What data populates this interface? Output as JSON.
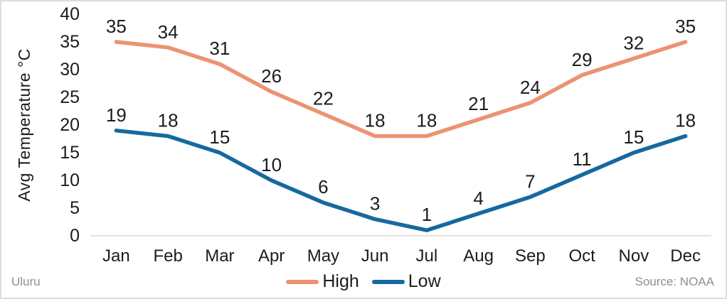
{
  "chart_data": {
    "type": "line",
    "title": "",
    "xlabel": "",
    "ylabel": "Avg Temperature °C",
    "categories": [
      "Jan",
      "Feb",
      "Mar",
      "Apr",
      "May",
      "Jun",
      "Jul",
      "Aug",
      "Sep",
      "Oct",
      "Nov",
      "Dec"
    ],
    "series": [
      {
        "name": "High",
        "color": "#EC9372",
        "values": [
          35,
          34,
          31,
          26,
          22,
          18,
          18,
          21,
          24,
          29,
          32,
          35
        ]
      },
      {
        "name": "Low",
        "color": "#16699F",
        "values": [
          19,
          18,
          15,
          10,
          6,
          3,
          1,
          4,
          7,
          11,
          15,
          18
        ]
      }
    ],
    "ylim": [
      0,
      40
    ],
    "yticks": [
      0,
      5,
      10,
      15,
      20,
      25,
      30,
      35,
      40
    ],
    "grid": false,
    "data_labels": true,
    "legend_position": "bottom-center"
  },
  "footer": {
    "left_label": "Uluru",
    "source_label": "Source: NOAA"
  },
  "colors": {
    "text": "#1c1c1c",
    "muted_text": "#8f8f8f",
    "axis_line": "#e2e2e2",
    "card_border": "#dddddd",
    "background": "#ffffff",
    "high_line": "#EC9372",
    "low_line": "#16699F"
  }
}
